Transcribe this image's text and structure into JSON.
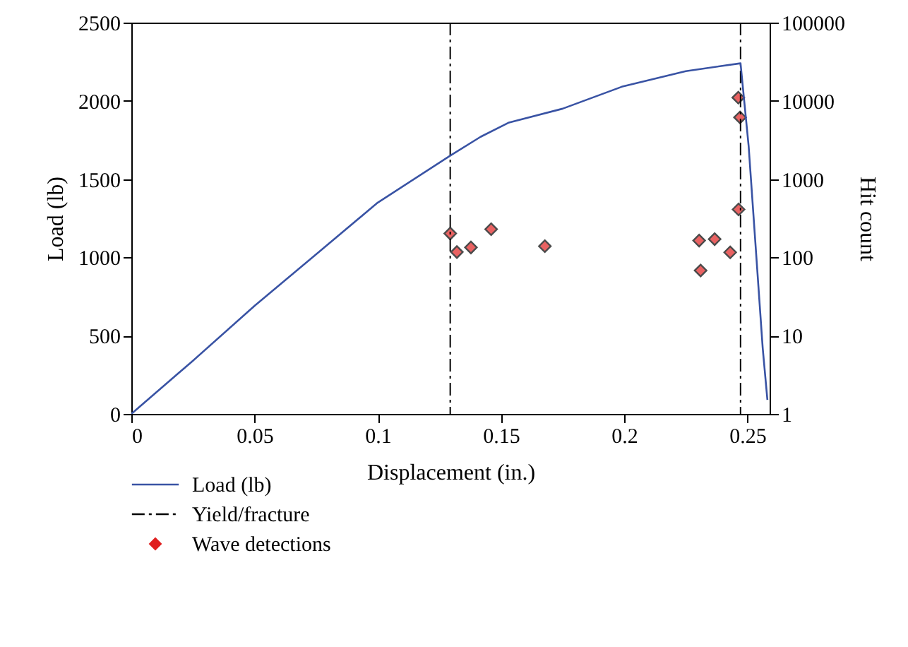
{
  "chart_data": {
    "type": "line",
    "xlabel": "Displacement (in.)",
    "ylabel": "Load (lb)",
    "y2label": "Hit count",
    "xlim": [
      0,
      0.259
    ],
    "xticks": [
      0,
      0.05,
      0.1,
      0.15,
      0.2,
      0.25
    ],
    "ylim": [
      0,
      2500
    ],
    "yticks": [
      0,
      500,
      1000,
      1500,
      2000,
      2500
    ],
    "y2lim": [
      1,
      100000
    ],
    "y2ticks": [
      1,
      10,
      100,
      1000,
      10000,
      100000
    ],
    "log": "y2",
    "series": [
      {
        "name": "Load (lb)",
        "color": "#3953a4",
        "line_style": "solid",
        "x": [
          0,
          0.025,
          0.05,
          0.075,
          0.1,
          0.1294,
          0.1417,
          0.153,
          0.175,
          0.199,
          0.225,
          0.2472,
          0.2505,
          0.2562,
          0.2581
        ],
        "values": [
          0,
          340,
          690,
          1020,
          1350,
          1650,
          1770,
          1860,
          1950,
          2090,
          2190,
          2240,
          1710,
          420,
          90
        ]
      },
      {
        "name": "Wave detections",
        "type": "scatter",
        "axis": "y2",
        "color": "#e02020",
        "marker": "diamond",
        "x": [
          0.1294,
          0.1321,
          0.1378,
          0.146,
          0.1678,
          0.2304,
          0.231,
          0.2367,
          0.243,
          0.2464,
          0.2463,
          0.247
        ],
        "values": [
          202,
          117,
          134,
          229,
          139,
          164,
          68,
          171,
          116,
          410,
          11000,
          6150
        ]
      }
    ],
    "ref_lines": [
      {
        "axis": "x",
        "value": 0.1294,
        "label": "Yield/fracture",
        "color": "#000000",
        "line_style": "dashed"
      },
      {
        "axis": "x",
        "value": 0.2472,
        "color": "#000000",
        "line_style": "dashed"
      }
    ],
    "legend": "bottom left"
  }
}
